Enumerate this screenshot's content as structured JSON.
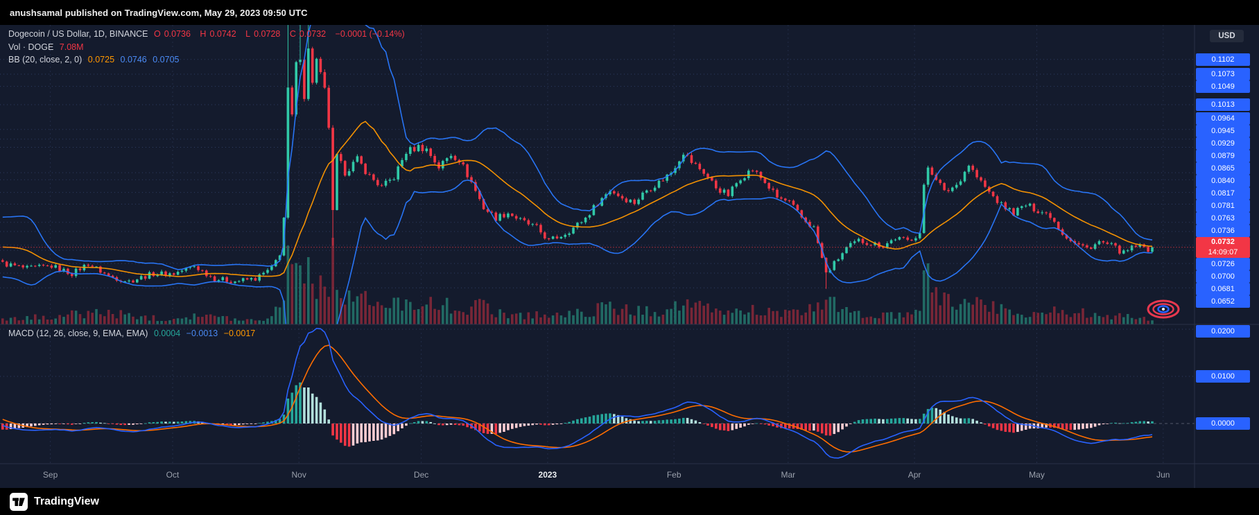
{
  "attribution": "anushsamal published on TradingView.com, May 29, 2023 09:50 UTC",
  "branding": {
    "wordmark": "TradingView"
  },
  "main_legend": {
    "title": "Dogecoin / US Dollar, 1D, BINANCE",
    "o_label": "O",
    "o": "0.0736",
    "h_label": "H",
    "h": "0.0742",
    "l_label": "L",
    "l": "0.0728",
    "c_label": "C",
    "c": "0.0732",
    "change": "−0.0001 (−0.14%)"
  },
  "volume_legend": {
    "label": "Vol · DOGE",
    "value": "7.08M"
  },
  "bb_legend": {
    "label": "BB (20, close, 2, 0)",
    "basis": "0.0725",
    "upper": "0.0746",
    "lower": "0.0705"
  },
  "macd_legend": {
    "label": "MACD (12, 26, close, 9, EMA, EMA)",
    "histogram": "0.0004",
    "macd": "−0.0013",
    "signal": "−0.0017"
  },
  "price_axis": {
    "currency": "USD",
    "last": {
      "price": "0.0732",
      "countdown": "14:09:07"
    },
    "levels": [
      "0.1102",
      "0.1073",
      "0.1049",
      "0.1013",
      "0.0964",
      "0.0945",
      "0.0929",
      "0.0879",
      "0.0865",
      "0.0840",
      "0.0817",
      "0.0781",
      "0.0763",
      "0.0736",
      "0.0726",
      "0.0700",
      "0.0681",
      "0.0652"
    ]
  },
  "macd_axis": {
    "levels": [
      "0.0200",
      "0.0100",
      "0.0000"
    ]
  },
  "time_axis": {
    "ticks": [
      {
        "label": "Sep",
        "day": 12
      },
      {
        "label": "Oct",
        "day": 42
      },
      {
        "label": "Nov",
        "day": 73
      },
      {
        "label": "Dec",
        "day": 103
      },
      {
        "label": "2023",
        "day": 134,
        "emphasis": true
      },
      {
        "label": "Feb",
        "day": 165
      },
      {
        "label": "Mar",
        "day": 193
      },
      {
        "label": "Apr",
        "day": 224
      },
      {
        "label": "May",
        "day": 254
      },
      {
        "label": "Jun",
        "day": 285
      }
    ]
  },
  "chart_data": [
    {
      "type": "candlestick",
      "title": "Dogecoin / US Dollar, 1D, BINANCE",
      "ylabel": "USD",
      "ylim": [
        0.058,
        0.117
      ],
      "x_axis_note": "day index from left edge; day 12 = Sep 1 2022, day 282 = May 29 2023 (last bar)",
      "close_anchors": [
        [
          0,
          0.07
        ],
        [
          6,
          0.069
        ],
        [
          12,
          0.0695
        ],
        [
          17,
          0.068
        ],
        [
          21,
          0.07
        ],
        [
          26,
          0.0675
        ],
        [
          31,
          0.0665
        ],
        [
          37,
          0.068
        ],
        [
          42,
          0.068
        ],
        [
          47,
          0.0695
        ],
        [
          52,
          0.067
        ],
        [
          57,
          0.0665
        ],
        [
          62,
          0.067
        ],
        [
          66,
          0.069
        ],
        [
          68,
          0.072
        ],
        [
          69,
          0.079
        ],
        [
          70,
          0.104
        ],
        [
          71,
          0.099
        ],
        [
          72,
          0.109
        ],
        [
          73,
          0.111
        ],
        [
          74,
          0.103
        ],
        [
          75,
          0.112
        ],
        [
          76,
          0.106
        ],
        [
          77,
          0.11
        ],
        [
          79,
          0.104
        ],
        [
          80,
          0.097
        ],
        [
          81,
          0.08
        ],
        [
          82,
          0.091
        ],
        [
          84,
          0.088
        ],
        [
          87,
          0.0905
        ],
        [
          90,
          0.0872
        ],
        [
          93,
          0.085
        ],
        [
          96,
          0.087
        ],
        [
          99,
          0.092
        ],
        [
          102,
          0.093
        ],
        [
          104,
          0.0925
        ],
        [
          107,
          0.089
        ],
        [
          110,
          0.0915
        ],
        [
          112,
          0.0905
        ],
        [
          115,
          0.086
        ],
        [
          118,
          0.081
        ],
        [
          121,
          0.079
        ],
        [
          124,
          0.08
        ],
        [
          127,
          0.0785
        ],
        [
          131,
          0.077
        ],
        [
          134,
          0.0745
        ],
        [
          137,
          0.0755
        ],
        [
          140,
          0.077
        ],
        [
          143,
          0.079
        ],
        [
          146,
          0.082
        ],
        [
          149,
          0.0845
        ],
        [
          152,
          0.083
        ],
        [
          155,
          0.082
        ],
        [
          158,
          0.0845
        ],
        [
          161,
          0.086
        ],
        [
          164,
          0.088
        ],
        [
          167,
          0.092
        ],
        [
          169,
          0.09
        ],
        [
          172,
          0.088
        ],
        [
          175,
          0.085
        ],
        [
          178,
          0.0835
        ],
        [
          181,
          0.087
        ],
        [
          184,
          0.0885
        ],
        [
          187,
          0.086
        ],
        [
          190,
          0.083
        ],
        [
          193,
          0.082
        ],
        [
          196,
          0.079
        ],
        [
          199,
          0.077
        ],
        [
          202,
          0.068
        ],
        [
          204,
          0.07
        ],
        [
          207,
          0.073
        ],
        [
          210,
          0.0745
        ],
        [
          213,
          0.074
        ],
        [
          216,
          0.0735
        ],
        [
          219,
          0.075
        ],
        [
          222,
          0.0745
        ],
        [
          225,
          0.076
        ],
        [
          226,
          0.085
        ],
        [
          227,
          0.089
        ],
        [
          229,
          0.087
        ],
        [
          231,
          0.084
        ],
        [
          234,
          0.0855
        ],
        [
          237,
          0.0895
        ],
        [
          239,
          0.087
        ],
        [
          242,
          0.084
        ],
        [
          245,
          0.0815
        ],
        [
          248,
          0.08
        ],
        [
          251,
          0.0815
        ],
        [
          254,
          0.0805
        ],
        [
          257,
          0.0795
        ],
        [
          260,
          0.076
        ],
        [
          263,
          0.074
        ],
        [
          266,
          0.073
        ],
        [
          269,
          0.0742
        ],
        [
          272,
          0.0735
        ],
        [
          275,
          0.072
        ],
        [
          278,
          0.0735
        ],
        [
          281,
          0.0728
        ],
        [
          282,
          0.0732
        ]
      ],
      "wick_high_overrides": [
        [
          70,
          0.125
        ],
        [
          73,
          0.158
        ],
        [
          75,
          0.133
        ]
      ],
      "wick_low_overrides": [
        [
          81,
          0.0735
        ],
        [
          202,
          0.065
        ]
      ],
      "seed_closes_before_left_edge": [
        0.07,
        0.0702,
        0.0705,
        0.071,
        0.0718,
        0.073,
        0.0748,
        0.0768,
        0.0785,
        0.079,
        0.0778,
        0.0762,
        0.0748,
        0.0736,
        0.0726,
        0.0718,
        0.0712,
        0.0707,
        0.0703,
        0.07
      ],
      "volume_rel_anchors": [
        [
          0,
          0.05
        ],
        [
          24,
          0.14
        ],
        [
          40,
          0.06
        ],
        [
          47,
          0.11
        ],
        [
          60,
          0.05
        ],
        [
          66,
          0.08
        ],
        [
          68,
          0.25
        ],
        [
          69,
          0.5
        ],
        [
          70,
          1.0
        ],
        [
          71,
          0.6
        ],
        [
          72,
          0.75
        ],
        [
          73,
          0.9
        ],
        [
          74,
          0.55
        ],
        [
          75,
          0.65
        ],
        [
          77,
          0.5
        ],
        [
          79,
          0.42
        ],
        [
          80,
          0.55
        ],
        [
          81,
          0.8
        ],
        [
          82,
          0.5
        ],
        [
          84,
          0.38
        ],
        [
          87,
          0.3
        ],
        [
          90,
          0.26
        ],
        [
          93,
          0.2
        ],
        [
          96,
          0.22
        ],
        [
          99,
          0.3
        ],
        [
          102,
          0.27
        ],
        [
          104,
          0.24
        ],
        [
          107,
          0.2
        ],
        [
          110,
          0.22
        ],
        [
          115,
          0.17
        ],
        [
          118,
          0.24
        ],
        [
          121,
          0.15
        ],
        [
          124,
          0.12
        ],
        [
          127,
          0.1
        ],
        [
          131,
          0.12
        ],
        [
          134,
          0.1
        ],
        [
          140,
          0.12
        ],
        [
          146,
          0.17
        ],
        [
          149,
          0.2
        ],
        [
          155,
          0.15
        ],
        [
          161,
          0.16
        ],
        [
          167,
          0.24
        ],
        [
          172,
          0.18
        ],
        [
          178,
          0.14
        ],
        [
          184,
          0.17
        ],
        [
          190,
          0.13
        ],
        [
          196,
          0.12
        ],
        [
          202,
          0.3
        ],
        [
          207,
          0.14
        ],
        [
          213,
          0.1
        ],
        [
          219,
          0.1
        ],
        [
          225,
          0.12
        ],
        [
          226,
          0.6
        ],
        [
          227,
          0.55
        ],
        [
          229,
          0.35
        ],
        [
          234,
          0.24
        ],
        [
          237,
          0.3
        ],
        [
          242,
          0.2
        ],
        [
          248,
          0.14
        ],
        [
          254,
          0.12
        ],
        [
          260,
          0.17
        ],
        [
          266,
          0.12
        ],
        [
          272,
          0.1
        ],
        [
          278,
          0.08
        ],
        [
          282,
          0.05
        ]
      ],
      "current_bar": {
        "open": 0.0736,
        "high": 0.0742,
        "low": 0.0728,
        "close": 0.0732,
        "change": -0.0001,
        "change_pct": -0.14,
        "volume": "7.08M"
      },
      "overlays": {
        "bollinger_bands": {
          "length": 20,
          "stdev": 2,
          "basis": 0.0725,
          "upper": 0.0746,
          "lower": 0.0705
        }
      }
    },
    {
      "type": "bar",
      "title": "MACD (12, 26, close, 9, EMA, EMA)",
      "derived": "MACD = EMA12 − EMA26 of close series above; signal = EMA9 of MACD; histogram = MACD − signal",
      "ylim": [
        -0.0085,
        0.021
      ],
      "axis_levels": [
        0.02,
        0.01,
        0.0
      ],
      "current": {
        "histogram": 0.0004,
        "macd": -0.0013,
        "signal": -0.0017
      }
    }
  ],
  "colors": {
    "background": "#141b2d",
    "frame_bars": "#000000",
    "divider": "#2a3247",
    "grid_v": "#222c47",
    "grid_lvl": "#2e3d63",
    "zero_line": "rgba(178,186,200,0.4)",
    "up": "#30c9a7",
    "down": "#f23645",
    "up_vol": "rgba(48,201,167,0.45)",
    "down_vol": "rgba(242,54,69,0.45)",
    "bb_band": "#2979ff",
    "bb_basis": "#ff9800",
    "macd_line": "#2962ff",
    "macd_signal": "#ff6d00",
    "hist_up": "#26a69a",
    "hist_up_weak": "#b2dfdb",
    "hist_down": "#f23645",
    "hist_down_weak": "#ffcdd2",
    "label_blue": "#2962ff",
    "label_red": "#f23645",
    "last_price_line": "#f23645"
  }
}
